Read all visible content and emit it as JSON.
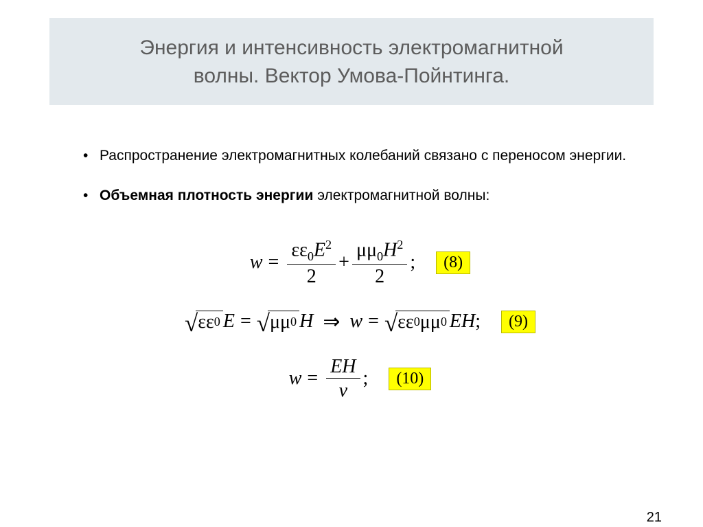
{
  "colors": {
    "title_band_bg": "#e3e9ed",
    "title_text": "#5c5c5c",
    "body_text": "#000000",
    "highlight_bg": "#ffff00",
    "highlight_border": "#b8b800",
    "page_bg": "#ffffff"
  },
  "title": {
    "line1": "Энергия и интенсивность электромагнитной",
    "line2": "волны. Вектор Умова-Пойнтинга."
  },
  "bullets": [
    {
      "plain_before": "Распространение электромагнитных колебаний связано с переносом энергии.",
      "bold": "",
      "plain_after": ""
    },
    {
      "plain_before": "",
      "bold": "Объемная плотность энергии",
      "plain_after": " электромагнитной волны:"
    }
  ],
  "equations": {
    "eq8": {
      "lhs_var": "w",
      "term1": {
        "num_sym1": "ε",
        "num_sym2": "ε",
        "num_sub": "0",
        "num_var": "E",
        "num_exp": "2",
        "den": "2"
      },
      "plus": "+",
      "term2": {
        "num_sym1": "μ",
        "num_sym2": "μ",
        "num_sub": "0",
        "num_var": "H",
        "num_exp": "2",
        "den": "2"
      },
      "tail": ";",
      "label": "(8)"
    },
    "eq9": {
      "left": {
        "r_sym1": "ε",
        "r_sym2": "ε",
        "r_sub": "0",
        "var": "E"
      },
      "eq_sign": "=",
      "mid": {
        "r_sym1": "μ",
        "r_sym2": "μ",
        "r_sub": "0",
        "var": "H"
      },
      "implies": "⇒",
      "right_lhs": "w",
      "right_rhs": {
        "r_sym1": "ε",
        "r_sym2": "ε",
        "r_sub1": "0",
        "r_sym3": "μ",
        "r_sym4": "μ",
        "r_sub2": "0",
        "var1": "E",
        "var2": "H"
      },
      "tail": ";",
      "label": "(9)"
    },
    "eq10": {
      "lhs_var": "w",
      "frac": {
        "num_var1": "E",
        "num_var2": "H",
        "den_var": "v"
      },
      "tail": ";",
      "label": "(10)"
    }
  },
  "page_number": "21"
}
